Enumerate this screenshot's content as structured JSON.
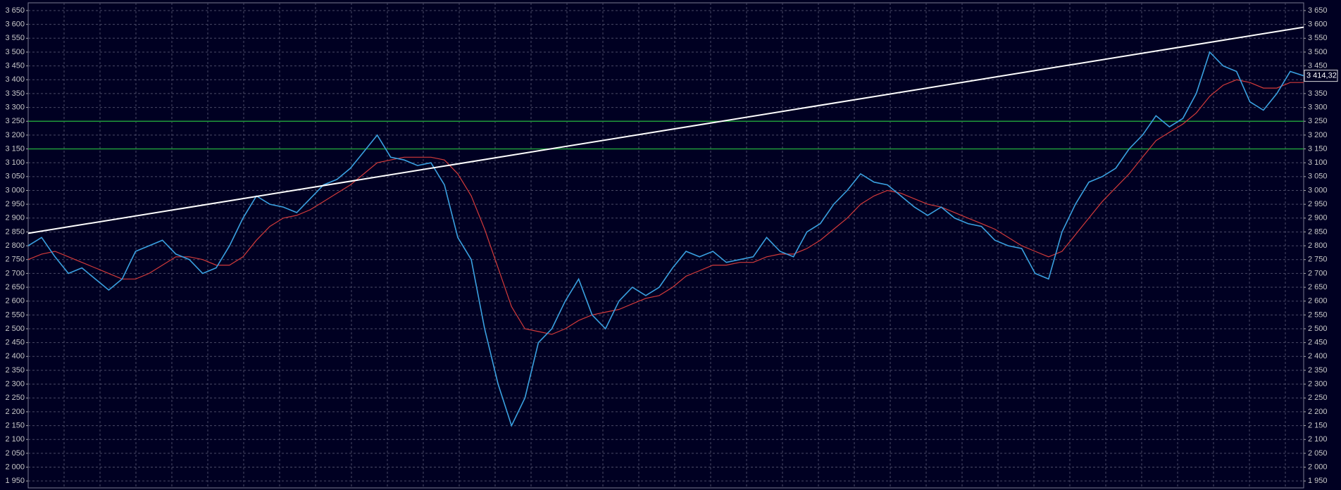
{
  "chart_data": {
    "type": "line",
    "ylim": [
      1925,
      3678
    ],
    "yticks": [
      {
        "value": 1950,
        "label": "1 950"
      },
      {
        "value": 2000,
        "label": "2 000"
      },
      {
        "value": 2050,
        "label": "2 050"
      },
      {
        "value": 2100,
        "label": "2 100"
      },
      {
        "value": 2150,
        "label": "2 150"
      },
      {
        "value": 2200,
        "label": "2 200"
      },
      {
        "value": 2250,
        "label": "2 250"
      },
      {
        "value": 2300,
        "label": "2 300"
      },
      {
        "value": 2350,
        "label": "2 350"
      },
      {
        "value": 2400,
        "label": "2 400"
      },
      {
        "value": 2450,
        "label": "2 450"
      },
      {
        "value": 2500,
        "label": "2 500"
      },
      {
        "value": 2550,
        "label": "2 550"
      },
      {
        "value": 2600,
        "label": "2 600"
      },
      {
        "value": 2650,
        "label": "2 650"
      },
      {
        "value": 2700,
        "label": "2 700"
      },
      {
        "value": 2750,
        "label": "2 750"
      },
      {
        "value": 2800,
        "label": "2 800"
      },
      {
        "value": 2850,
        "label": "2 850"
      },
      {
        "value": 2900,
        "label": "2 900"
      },
      {
        "value": 2950,
        "label": "2 950"
      },
      {
        "value": 3000,
        "label": "3 000"
      },
      {
        "value": 3050,
        "label": "3 050"
      },
      {
        "value": 3100,
        "label": "3 100"
      },
      {
        "value": 3150,
        "label": "3 150"
      },
      {
        "value": 3200,
        "label": "3 200"
      },
      {
        "value": 3250,
        "label": "3 250"
      },
      {
        "value": 3300,
        "label": "3 300"
      },
      {
        "value": 3350,
        "label": "3 350"
      },
      {
        "value": 3400,
        "label": "3 400"
      },
      {
        "value": 3450,
        "label": "3 450"
      },
      {
        "value": 3500,
        "label": "3 500"
      },
      {
        "value": 3550,
        "label": "3 550"
      },
      {
        "value": 3600,
        "label": "3 600"
      },
      {
        "value": 3650,
        "label": "3 650"
      }
    ],
    "grid": true,
    "series": [
      {
        "color": "#d23a3a",
        "values": [
          2750,
          2770,
          2780,
          2760,
          2740,
          2720,
          2700,
          2680,
          2680,
          2700,
          2730,
          2760,
          2760,
          2750,
          2730,
          2730,
          2760,
          2820,
          2870,
          2900,
          2910,
          2930,
          2960,
          2990,
          3020,
          3060,
          3100,
          3110,
          3120,
          3120,
          3120,
          3110,
          3060,
          2980,
          2860,
          2720,
          2580,
          2500,
          2490,
          2480,
          2500,
          2530,
          2550,
          2560,
          2570,
          2590,
          2610,
          2620,
          2650,
          2690,
          2710,
          2730,
          2730,
          2740,
          2740,
          2760,
          2770,
          2770,
          2790,
          2820,
          2860,
          2900,
          2950,
          2980,
          3000,
          2990,
          2970,
          2950,
          2940,
          2920,
          2900,
          2880,
          2860,
          2830,
          2800,
          2780,
          2760,
          2780,
          2840,
          2900,
          2960,
          3010,
          3060,
          3120,
          3180,
          3210,
          3240,
          3280,
          3340,
          3380,
          3400,
          3390,
          3370,
          3370,
          3390,
          3390
        ]
      },
      {
        "color": "#3aa0e0",
        "values": [
          2800,
          2830,
          2760,
          2700,
          2720,
          2680,
          2640,
          2680,
          2780,
          2800,
          2820,
          2770,
          2750,
          2700,
          2720,
          2800,
          2900,
          2980,
          2950,
          2940,
          2920,
          2970,
          3020,
          3040,
          3080,
          3140,
          3200,
          3120,
          3110,
          3090,
          3100,
          3020,
          2830,
          2750,
          2500,
          2300,
          2150,
          2250,
          2450,
          2500,
          2600,
          2680,
          2550,
          2500,
          2600,
          2650,
          2620,
          2650,
          2720,
          2780,
          2760,
          2780,
          2740,
          2750,
          2760,
          2830,
          2780,
          2760,
          2850,
          2880,
          2950,
          3000,
          3060,
          3030,
          3020,
          2980,
          2940,
          2910,
          2940,
          2900,
          2880,
          2870,
          2820,
          2800,
          2790,
          2700,
          2680,
          2850,
          2950,
          3030,
          3050,
          3080,
          3150,
          3200,
          3270,
          3230,
          3260,
          3350,
          3500,
          3450,
          3430,
          3320,
          3290,
          3350,
          3430,
          3414.32
        ]
      }
    ],
    "trend_line": {
      "color": "#ffffff",
      "values": [
        2845,
        3590
      ]
    },
    "hlines": {
      "color": "#1f9a3a",
      "values": [
        3250,
        3150
      ]
    },
    "last_price": {
      "value": 3414.32,
      "label": "3 414,32"
    }
  }
}
